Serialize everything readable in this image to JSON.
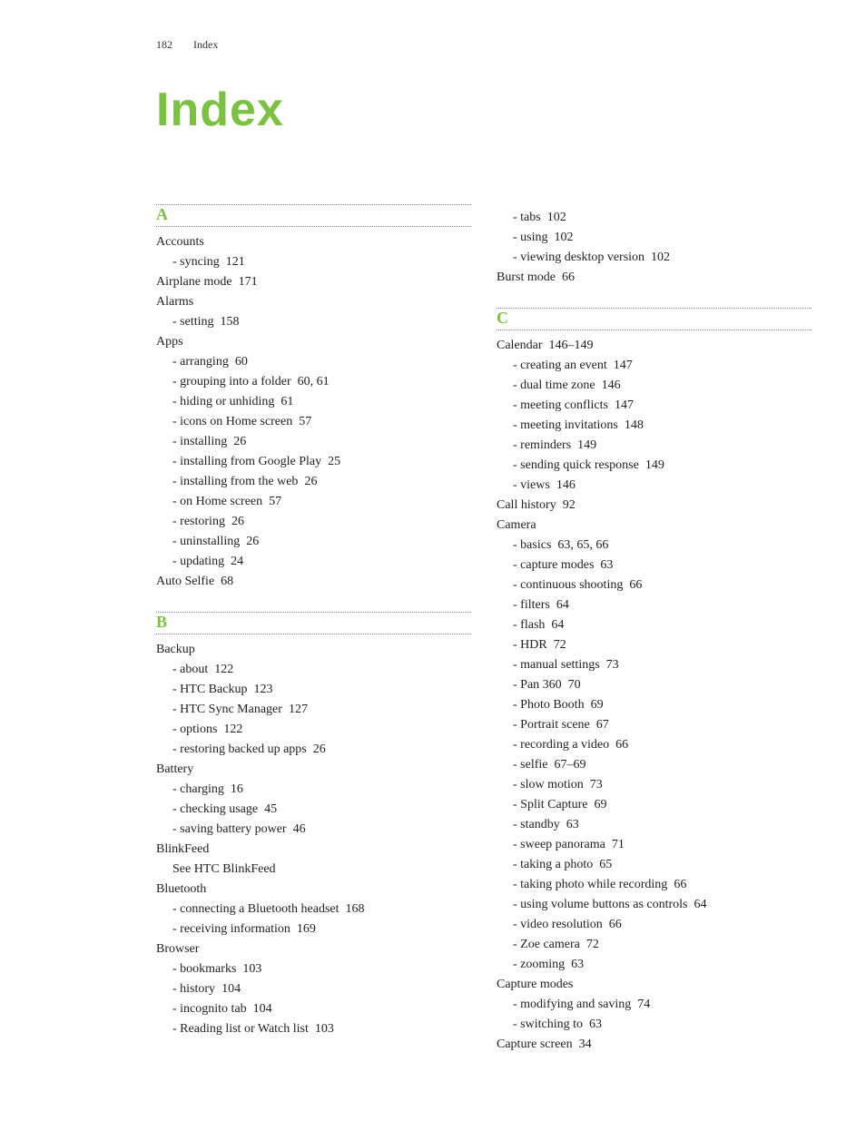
{
  "header": {
    "page_number": "182",
    "section": "Index"
  },
  "title": "Index",
  "accent_color": "#7cc242",
  "text_color": "#222222",
  "background_color": "#ffffff",
  "font_body": "Georgia, Times New Roman, serif",
  "font_title": "Arial, Helvetica, sans-serif",
  "columns": [
    {
      "sections": [
        {
          "letter": "A",
          "entries": [
            {
              "term": "Accounts",
              "subs": [
                {
                  "text": "syncing",
                  "pages": "121"
                }
              ]
            },
            {
              "term": "Airplane mode",
              "pages": "171"
            },
            {
              "term": "Alarms",
              "subs": [
                {
                  "text": "setting",
                  "pages": "158"
                }
              ]
            },
            {
              "term": "Apps",
              "subs": [
                {
                  "text": "arranging",
                  "pages": "60"
                },
                {
                  "text": "grouping into a folder",
                  "pages": "60, 61"
                },
                {
                  "text": "hiding or unhiding",
                  "pages": "61"
                },
                {
                  "text": "icons on Home screen",
                  "pages": "57"
                },
                {
                  "text": "installing",
                  "pages": "26"
                },
                {
                  "text": "installing from Google Play",
                  "pages": "25"
                },
                {
                  "text": "installing from the web",
                  "pages": "26"
                },
                {
                  "text": "on Home screen",
                  "pages": "57"
                },
                {
                  "text": "restoring",
                  "pages": "26"
                },
                {
                  "text": "uninstalling",
                  "pages": "26"
                },
                {
                  "text": "updating",
                  "pages": "24"
                }
              ]
            },
            {
              "term": "Auto Selfie",
              "pages": "68"
            }
          ]
        },
        {
          "letter": "B",
          "entries": [
            {
              "term": "Backup",
              "subs": [
                {
                  "text": "about",
                  "pages": "122"
                },
                {
                  "text": "HTC Backup",
                  "pages": "123"
                },
                {
                  "text": "HTC Sync Manager",
                  "pages": "127"
                },
                {
                  "text": "options",
                  "pages": "122"
                },
                {
                  "text": "restoring backed up apps",
                  "pages": "26"
                }
              ]
            },
            {
              "term": "Battery",
              "subs": [
                {
                  "text": "charging",
                  "pages": "16"
                },
                {
                  "text": "checking usage",
                  "pages": "45"
                },
                {
                  "text": "saving battery power",
                  "pages": "46"
                }
              ]
            },
            {
              "term": "BlinkFeed",
              "see": "See HTC BlinkFeed"
            },
            {
              "term": "Bluetooth",
              "subs": [
                {
                  "text": "connecting a Bluetooth headset",
                  "pages": "168"
                },
                {
                  "text": "receiving information",
                  "pages": "169"
                }
              ]
            },
            {
              "term": "Browser",
              "subs": [
                {
                  "text": "bookmarks",
                  "pages": "103"
                },
                {
                  "text": "history",
                  "pages": "104"
                },
                {
                  "text": "incognito tab",
                  "pages": "104"
                },
                {
                  "text": "Reading list or Watch list",
                  "pages": "103"
                }
              ]
            }
          ]
        }
      ]
    },
    {
      "sections": [
        {
          "continuation": true,
          "entries": [
            {
              "term_continue_subs": [
                {
                  "text": "tabs",
                  "pages": "102"
                },
                {
                  "text": "using",
                  "pages": "102"
                },
                {
                  "text": "viewing desktop version",
                  "pages": "102"
                }
              ]
            },
            {
              "term": "Burst mode",
              "pages": "66"
            }
          ]
        },
        {
          "letter": "C",
          "entries": [
            {
              "term": "Calendar",
              "pages": "146–149",
              "subs": [
                {
                  "text": "creating an event",
                  "pages": "147"
                },
                {
                  "text": "dual time zone",
                  "pages": "146"
                },
                {
                  "text": "meeting conflicts",
                  "pages": "147"
                },
                {
                  "text": "meeting invitations",
                  "pages": "148"
                },
                {
                  "text": "reminders",
                  "pages": "149"
                },
                {
                  "text": "sending quick response",
                  "pages": "149"
                },
                {
                  "text": "views",
                  "pages": "146"
                }
              ]
            },
            {
              "term": "Call history",
              "pages": "92"
            },
            {
              "term": "Camera",
              "subs": [
                {
                  "text": "basics",
                  "pages": "63, 65, 66"
                },
                {
                  "text": "capture modes",
                  "pages": "63"
                },
                {
                  "text": "continuous shooting",
                  "pages": "66"
                },
                {
                  "text": "filters",
                  "pages": "64"
                },
                {
                  "text": "flash",
                  "pages": "64"
                },
                {
                  "text": "HDR",
                  "pages": "72"
                },
                {
                  "text": "manual settings",
                  "pages": "73"
                },
                {
                  "text": "Pan 360",
                  "pages": "70"
                },
                {
                  "text": "Photo Booth",
                  "pages": "69"
                },
                {
                  "text": "Portrait scene",
                  "pages": "67"
                },
                {
                  "text": "recording a video",
                  "pages": "66"
                },
                {
                  "text": "selfie",
                  "pages": "67–69"
                },
                {
                  "text": "slow motion",
                  "pages": "73"
                },
                {
                  "text": "Split Capture",
                  "pages": "69"
                },
                {
                  "text": "standby",
                  "pages": "63"
                },
                {
                  "text": "sweep panorama",
                  "pages": "71"
                },
                {
                  "text": "taking a photo",
                  "pages": "65"
                },
                {
                  "text": "taking photo while recording",
                  "pages": "66"
                },
                {
                  "text": "using volume buttons as controls",
                  "pages": "64"
                },
                {
                  "text": "video resolution",
                  "pages": "66"
                },
                {
                  "text": "Zoe camera",
                  "pages": "72"
                },
                {
                  "text": "zooming",
                  "pages": "63"
                }
              ]
            },
            {
              "term": "Capture modes",
              "subs": [
                {
                  "text": "modifying and saving",
                  "pages": "74"
                },
                {
                  "text": "switching to",
                  "pages": "63"
                }
              ]
            },
            {
              "term": "Capture screen",
              "pages": "34"
            }
          ]
        }
      ]
    }
  ]
}
